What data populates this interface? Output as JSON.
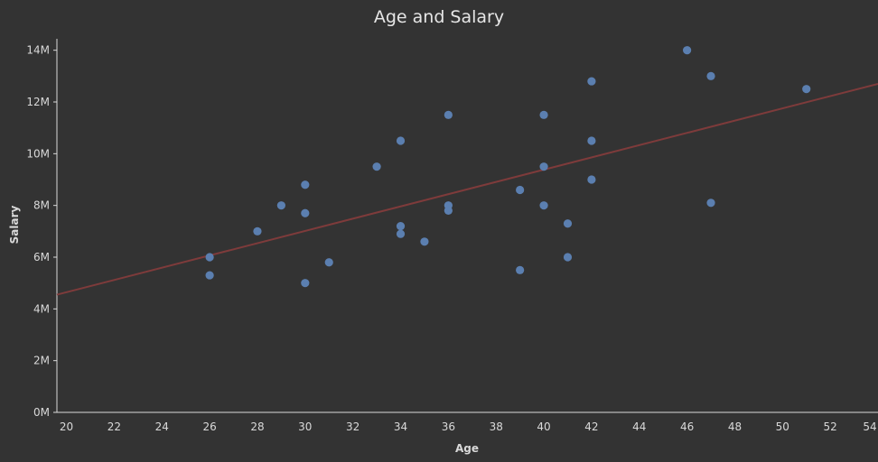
{
  "chart_data": {
    "type": "scatter",
    "title": "Age and Salary",
    "xlabel": "Age",
    "ylabel": "Salary",
    "xlim": [
      19.6,
      54
    ],
    "ylim": [
      0,
      15
    ],
    "x_ticks": [
      20,
      22,
      24,
      26,
      28,
      30,
      32,
      34,
      36,
      38,
      40,
      42,
      44,
      46,
      48,
      50,
      52,
      54
    ],
    "y_ticks": [
      {
        "value": 0,
        "label": "0M"
      },
      {
        "value": 2,
        "label": "2M"
      },
      {
        "value": 4,
        "label": "4M"
      },
      {
        "value": 6,
        "label": "6M"
      },
      {
        "value": 8,
        "label": "8M"
      },
      {
        "value": 10,
        "label": "10M"
      },
      {
        "value": 12,
        "label": "12M"
      },
      {
        "value": 14,
        "label": "14M"
      }
    ],
    "points": [
      {
        "x": 26,
        "y": 6.0
      },
      {
        "x": 26,
        "y": 5.3
      },
      {
        "x": 28,
        "y": 7.0
      },
      {
        "x": 29,
        "y": 8.0
      },
      {
        "x": 30,
        "y": 8.8
      },
      {
        "x": 30,
        "y": 7.7
      },
      {
        "x": 30,
        "y": 5.0
      },
      {
        "x": 31,
        "y": 5.8
      },
      {
        "x": 33,
        "y": 9.5
      },
      {
        "x": 34,
        "y": 10.5
      },
      {
        "x": 34,
        "y": 7.2
      },
      {
        "x": 34,
        "y": 6.9
      },
      {
        "x": 35,
        "y": 6.6
      },
      {
        "x": 36,
        "y": 11.5
      },
      {
        "x": 36,
        "y": 8.0
      },
      {
        "x": 36,
        "y": 7.8
      },
      {
        "x": 39,
        "y": 8.6
      },
      {
        "x": 39,
        "y": 5.5
      },
      {
        "x": 40,
        "y": 11.5
      },
      {
        "x": 40,
        "y": 9.5
      },
      {
        "x": 40,
        "y": 8.0
      },
      {
        "x": 41,
        "y": 7.3
      },
      {
        "x": 41,
        "y": 6.0
      },
      {
        "x": 42,
        "y": 12.8
      },
      {
        "x": 42,
        "y": 10.5
      },
      {
        "x": 42,
        "y": 9.0
      },
      {
        "x": 46,
        "y": 14.0
      },
      {
        "x": 47,
        "y": 13.0
      },
      {
        "x": 47,
        "y": 8.1
      },
      {
        "x": 51,
        "y": 12.5
      }
    ],
    "trend_line": {
      "x": [
        19.6,
        54
      ],
      "y": [
        4.55,
        12.7
      ]
    },
    "colors": {
      "background": "#333333",
      "point": "#5b7fb0",
      "trend": "#7e3b3b",
      "text": "#d9d9d9",
      "axis": "#d9d9d9"
    },
    "grid": false,
    "legend": "none"
  }
}
